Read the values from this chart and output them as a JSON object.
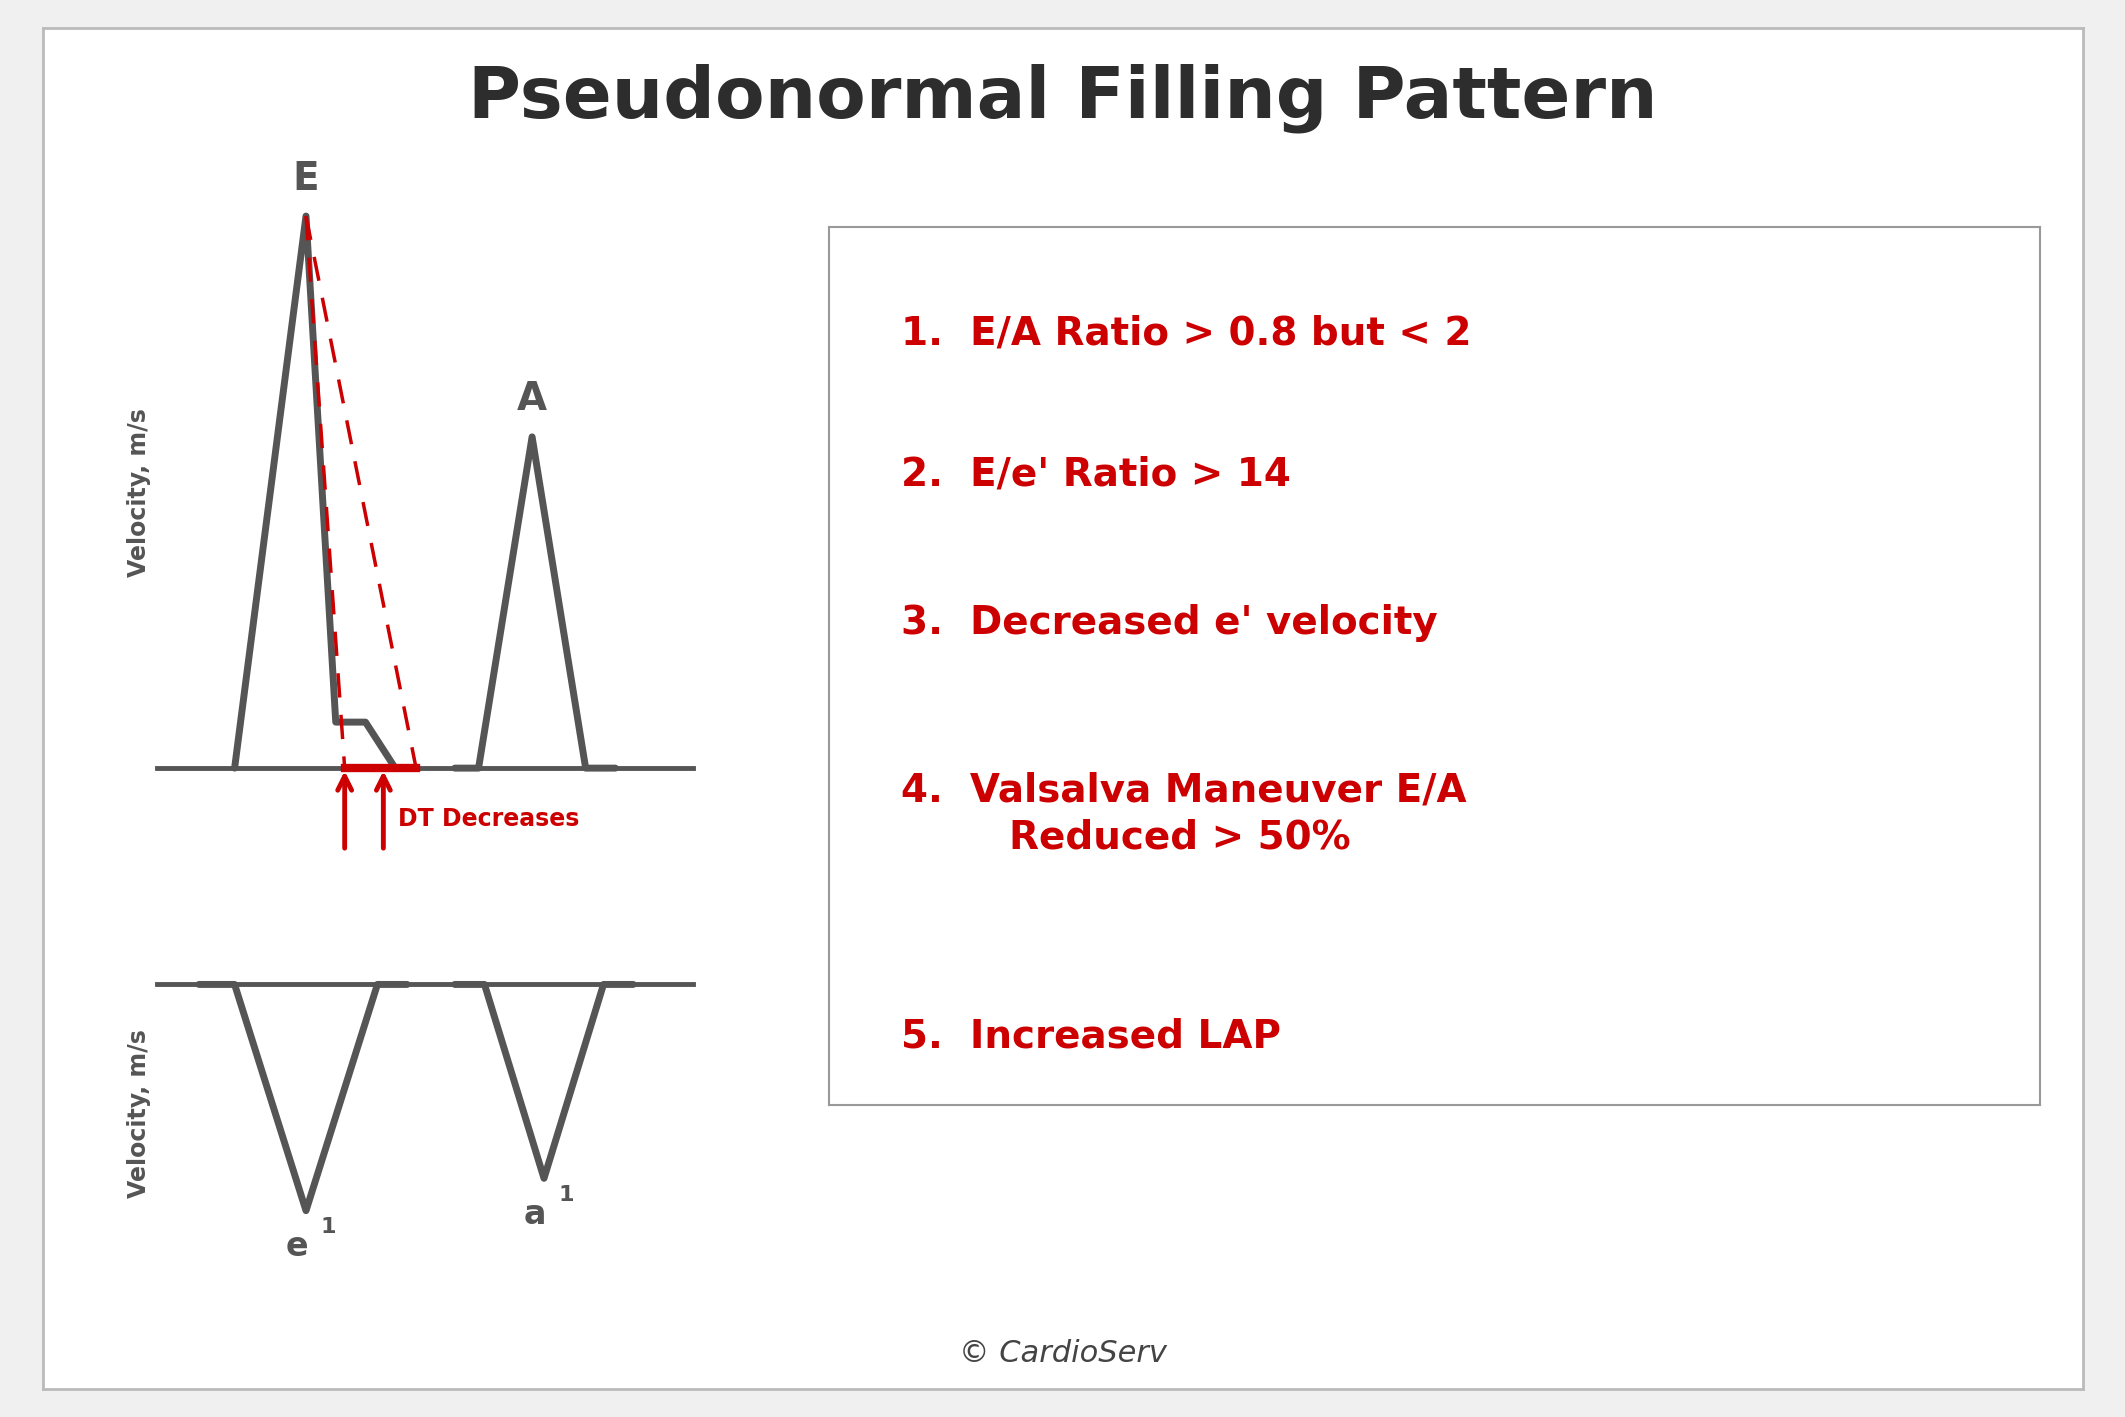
{
  "title": "Pseudonormal Filling Pattern",
  "title_fontsize": 52,
  "title_color": "#2d2d2d",
  "background_color": "#f0f0f0",
  "card_color": "#ffffff",
  "waveform_color": "#555555",
  "red_color": "#cc0000",
  "ylabel": "Velocity, m/s",
  "ylabel_fontsize": 17,
  "list_items": [
    "1.  E/A Ratio > 0.8 but < 2",
    "2.  E/e' Ratio > 14",
    "3.  Decreased e' velocity",
    "4.  Valsalva Maneuver E/A\n        Reduced > 50%",
    "5.  Increased LAP"
  ],
  "list_fontsize": 28,
  "copyright": "© CardioServ",
  "copyright_fontsize": 22
}
